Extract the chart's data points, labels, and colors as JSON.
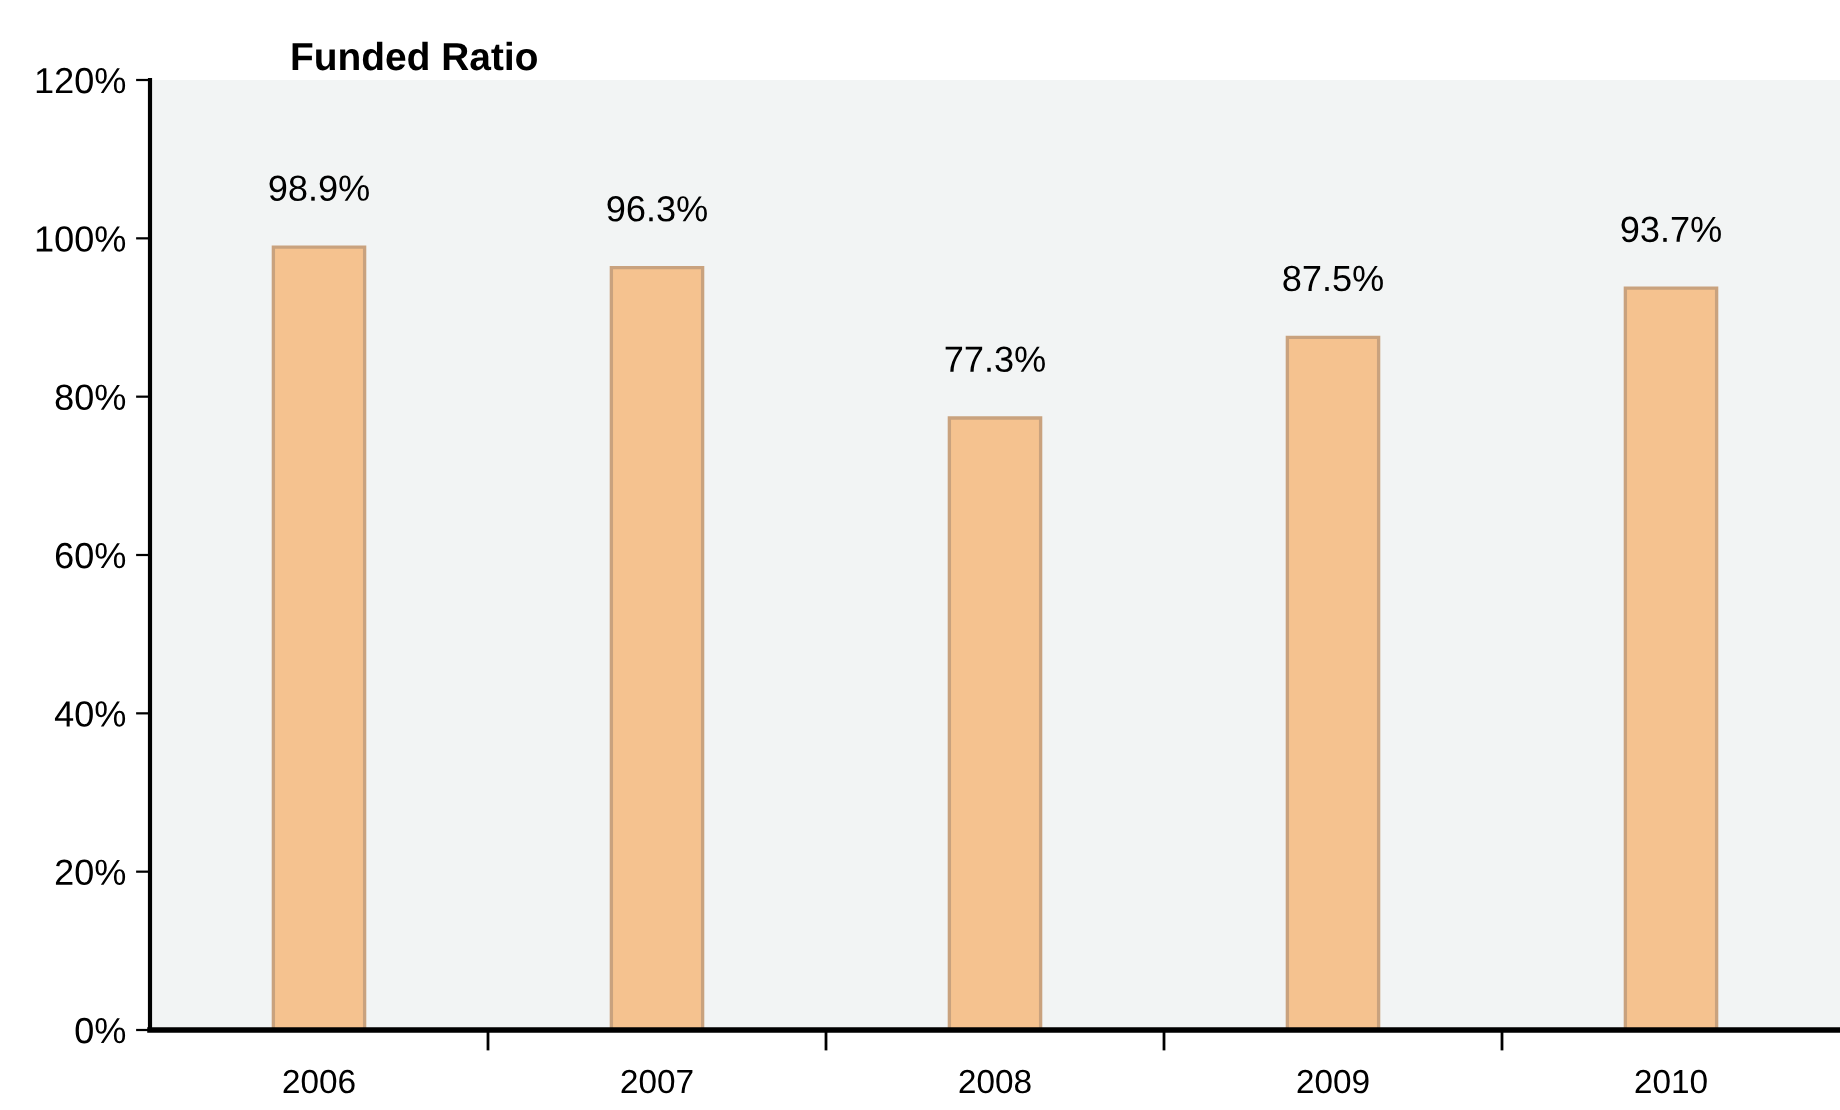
{
  "chart_data": {
    "type": "bar",
    "title": "Funded Ratio",
    "categories": [
      "2006",
      "2007",
      "2008",
      "2009",
      "2010"
    ],
    "values": [
      98.9,
      96.3,
      77.3,
      87.5,
      93.7
    ],
    "color": "#f5c28f",
    "value_labels": [
      "98.9%",
      "96.3%",
      "77.3%",
      "87.5%",
      "93.7%"
    ],
    "ylim": [
      0,
      120
    ],
    "yticks": [
      {
        "value": 0,
        "label": "0%"
      },
      {
        "value": 20,
        "label": "20%"
      },
      {
        "value": 40,
        "label": "40%"
      },
      {
        "value": 60,
        "label": "60%"
      },
      {
        "value": 80,
        "label": "80%"
      },
      {
        "value": 100,
        "label": "100%"
      },
      {
        "value": 120,
        "label": "120%"
      }
    ],
    "grid": false,
    "legend": false
  }
}
